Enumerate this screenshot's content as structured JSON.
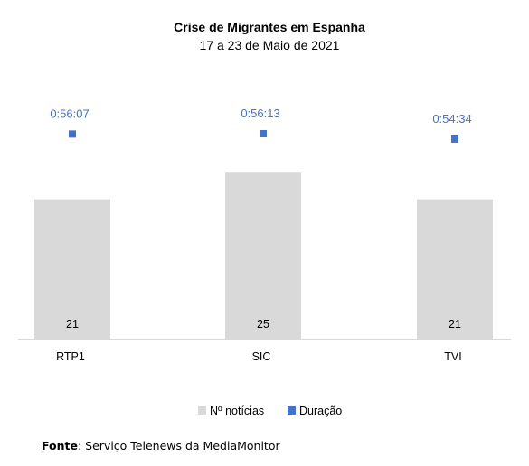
{
  "chart_data": {
    "type": "bar",
    "title": "Crise de Migrantes em Espanha",
    "subtitle": "17 a 23 de Maio de 2021",
    "categories": [
      "RTP1",
      "SIC",
      "TVI"
    ],
    "series": [
      {
        "name": "Nº notícias",
        "kind": "bar",
        "values": [
          21,
          25,
          21
        ],
        "color": "#d9d9d9"
      },
      {
        "name": "Duração",
        "kind": "marker",
        "values": [
          "0:56:07",
          "0:56:13",
          "0:54:34"
        ],
        "seconds": [
          3367,
          3373,
          3274
        ],
        "color": "#4472c4"
      }
    ],
    "legend_position": "bottom",
    "grid": false
  },
  "source": {
    "label": "Fonte",
    "text": "Serviço Telenews da MediaMonitor"
  }
}
